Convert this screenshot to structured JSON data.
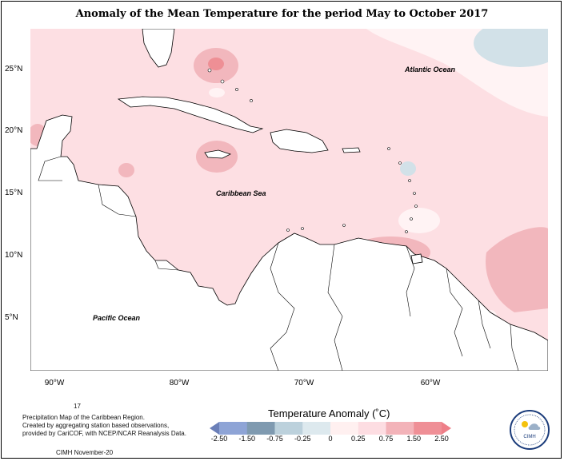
{
  "title": "Anomaly of the Mean Temperature for the period May to October 2017",
  "map": {
    "labels": {
      "atlantic": "Atlantic Ocean",
      "caribbean": "Caribbean Sea",
      "pacific": "Pacific Ocean"
    },
    "y_ticks": [
      "25°N",
      "20°N",
      "15°N",
      "10°N",
      "5°N"
    ],
    "x_ticks": [
      "90°W",
      "80°W",
      "70°W",
      "60°W"
    ],
    "colors": {
      "base_anomaly": "#fddfe3",
      "mid_anomaly": "#f2b7bd",
      "high_anomaly": "#ee8f95",
      "negative_anomaly": "#d2e1e8",
      "near_zero": "#fff3f4",
      "land": "#ffffff"
    }
  },
  "notes": {
    "number": "17",
    "line1": "Precipitation Map of the Caribbean Region.",
    "line2": "Created by aggregating station based observations,",
    "line3": "provided by CariCOF, with NCEP/NCAR Reanalysis Data.",
    "credit": "CIMH November-20"
  },
  "legend": {
    "title": "Temperature Anomaly (˚C)",
    "ticks": [
      "-2.50",
      "-1.50",
      "-0.75",
      "-0.25",
      "0",
      "0.25",
      "0.75",
      "1.50",
      "2.50"
    ],
    "colors": [
      "#6b7fb8",
      "#8ea4d6",
      "#7f9ab0",
      "#bcd1dc",
      "#dde9ee",
      "#fff0f0",
      "#fddde2",
      "#f3b3b9",
      "#ef8f96",
      "#ee7f88"
    ]
  },
  "logo": {
    "text": "CIMH"
  }
}
